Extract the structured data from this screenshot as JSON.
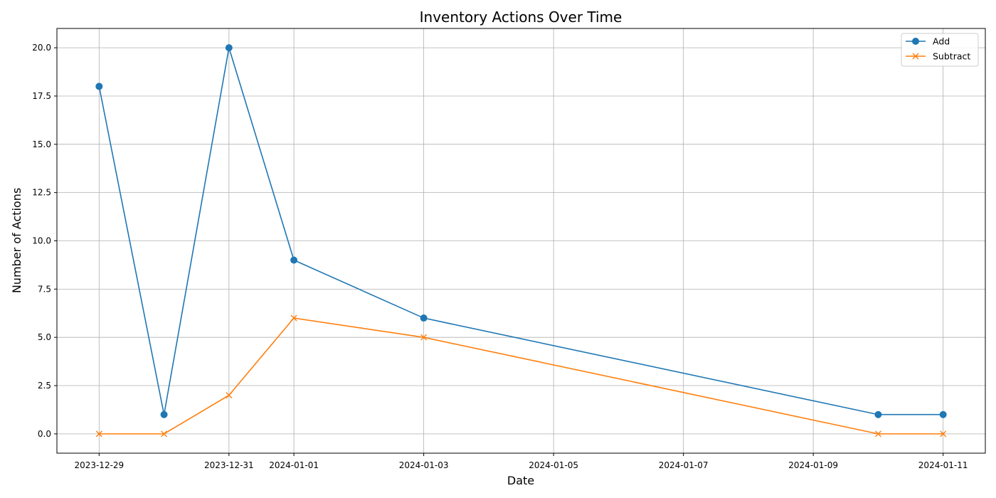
{
  "chart_data": {
    "type": "line",
    "title": "Inventory Actions Over Time",
    "xlabel": "Date",
    "ylabel": "Number of Actions",
    "x": [
      "2023-12-29",
      "2023-12-30",
      "2023-12-31",
      "2024-01-01",
      "2024-01-03",
      "2024-01-10",
      "2024-01-11"
    ],
    "x_ticks": [
      "2023-12-29",
      "2023-12-31",
      "2024-01-01",
      "2024-01-03",
      "2024-01-05",
      "2024-01-07",
      "2024-01-09",
      "2024-01-11"
    ],
    "xlim": [
      "2023-12-28.35",
      "2024-01-11.65"
    ],
    "ylim": [
      -1,
      21
    ],
    "y_ticks": [
      "0.0",
      "2.5",
      "5.0",
      "7.5",
      "10.0",
      "12.5",
      "15.0",
      "17.5",
      "20.0"
    ],
    "grid": true,
    "legend_position": "top-right",
    "series": [
      {
        "name": "Add",
        "color": "#1f77b4",
        "marker": "circle",
        "values": [
          18,
          1,
          20,
          9,
          6,
          1,
          1
        ]
      },
      {
        "name": "Subtract",
        "color": "#ff7f0e",
        "marker": "x",
        "values": [
          0,
          0,
          2,
          6,
          5,
          0,
          0
        ]
      }
    ]
  }
}
